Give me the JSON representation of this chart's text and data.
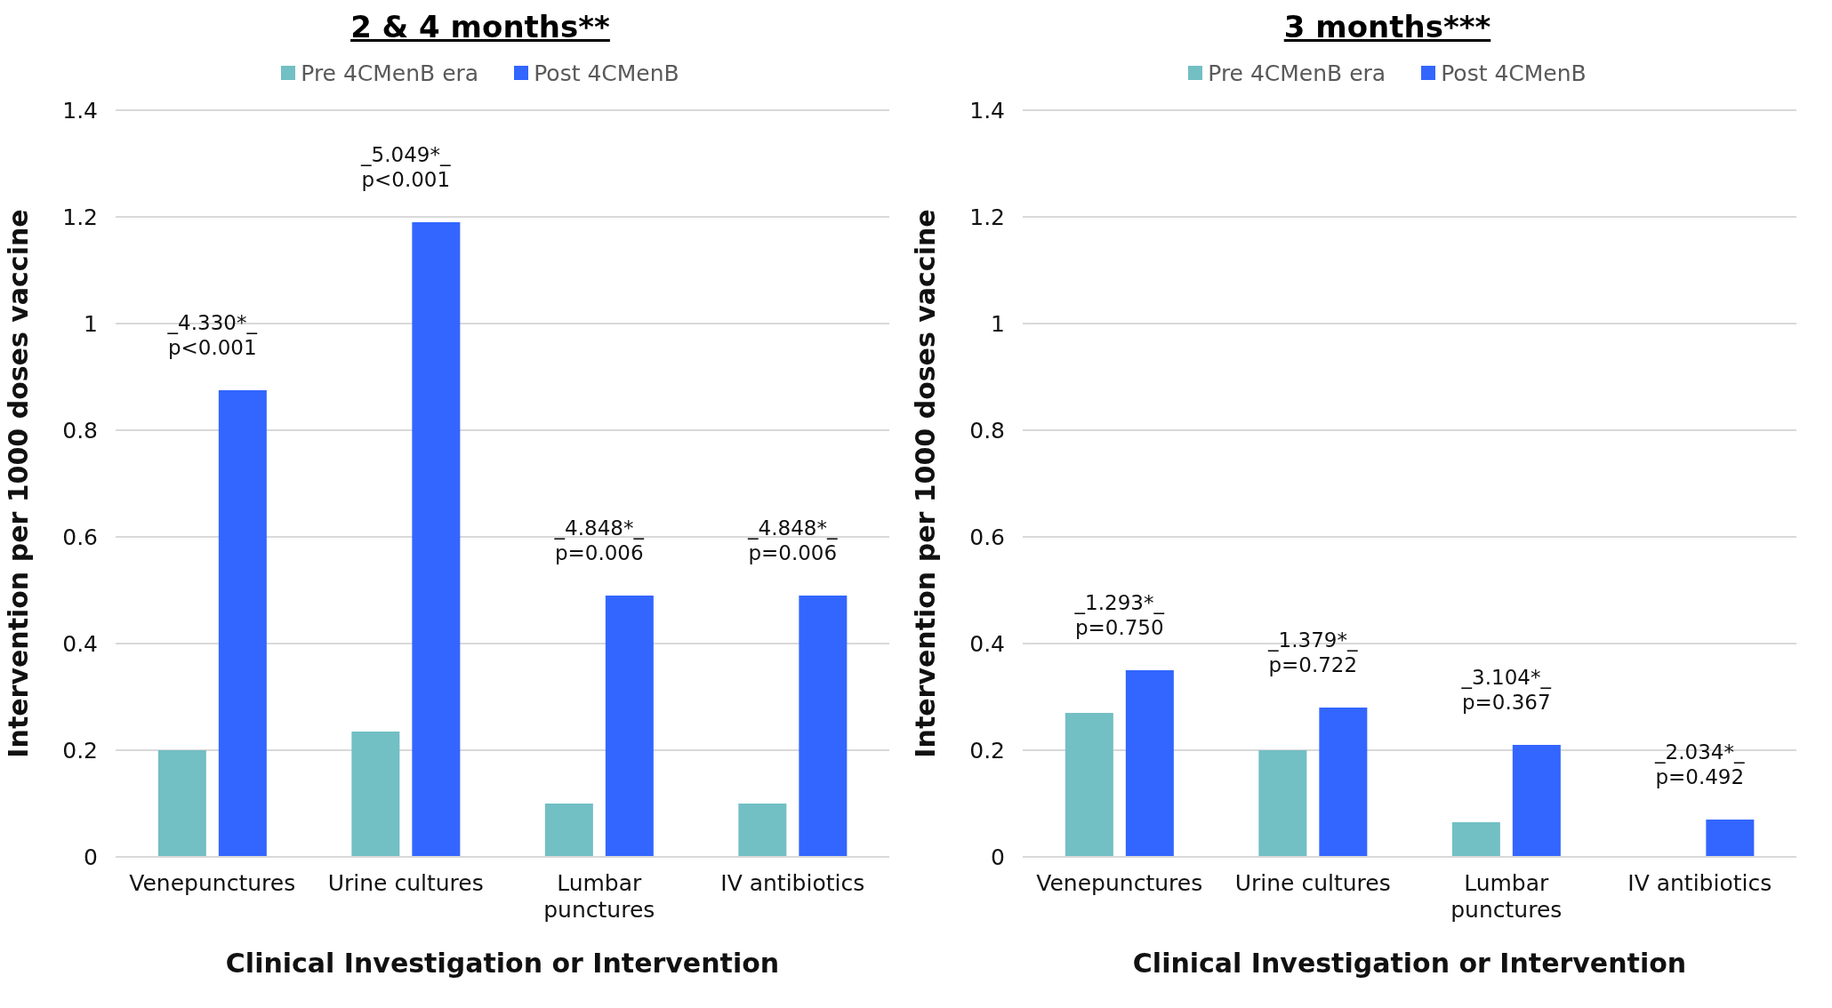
{
  "chart_data": [
    {
      "type": "bar",
      "title": "2 & 4 months**",
      "xlabel": "Clinical Investigation or Intervention",
      "ylabel": "Intervention per 1000 doses vaccine",
      "categories": [
        "Venepunctures",
        "Urine cultures",
        "Lumbar punctures",
        "IV antibiotics"
      ],
      "series": [
        {
          "name": "Pre 4CMenB era",
          "color": "#72bfc4",
          "values": [
            0.2,
            0.235,
            0.1,
            0.1
          ]
        },
        {
          "name": "Post 4CMenB",
          "color": "#3366ff",
          "values": [
            0.875,
            1.19,
            0.49,
            0.49
          ]
        }
      ],
      "ylim": [
        0,
        1.4
      ],
      "yticks": [
        0,
        0.2,
        0.4,
        0.6,
        0.8,
        1,
        1.2,
        1.4
      ],
      "grid": "y",
      "legend": "top",
      "annotations": [
        "_4.330*_\np<0.001",
        "_5.049*_\np<0.001",
        "_4.848*_\np=0.006",
        "_4.848*_\np=0.006"
      ]
    },
    {
      "type": "bar",
      "title": "3 months***",
      "xlabel": "Clinical Investigation or Intervention",
      "ylabel": "Intervention per 1000 doses vaccine",
      "categories": [
        "Venepunctures",
        "Urine cultures",
        "Lumbar punctures",
        "IV antibiotics"
      ],
      "series": [
        {
          "name": "Pre 4CMenB era",
          "color": "#72bfc4",
          "values": [
            0.27,
            0.2,
            0.065,
            0
          ]
        },
        {
          "name": "Post 4CMenB",
          "color": "#3366ff",
          "values": [
            0.35,
            0.28,
            0.21,
            0.07
          ]
        }
      ],
      "ylim": [
        0,
        1.4
      ],
      "yticks": [
        0,
        0.2,
        0.4,
        0.6,
        0.8,
        1,
        1.2,
        1.4
      ],
      "grid": "y",
      "legend": "top",
      "annotations": [
        "_1.293*_\np=0.750",
        "_1.379*_\np=0.722",
        "_3.104*_\np=0.367",
        "_2.034*_\np=0.492"
      ]
    }
  ]
}
